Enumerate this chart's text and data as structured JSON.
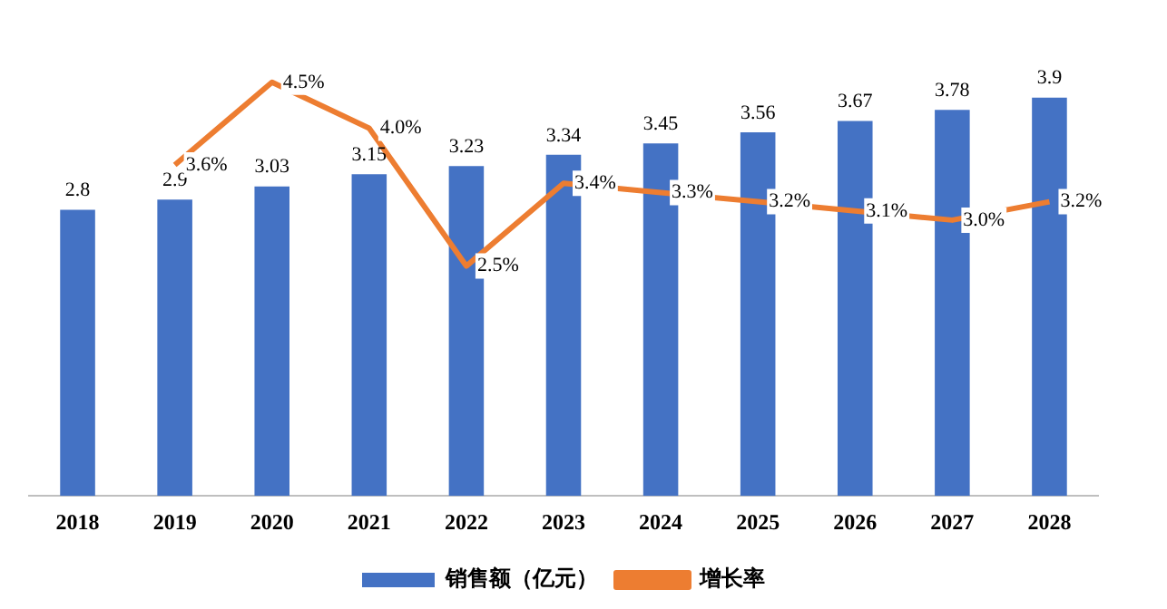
{
  "chart_data": {
    "type": "bar",
    "categories": [
      "2018",
      "2019",
      "2020",
      "2021",
      "2022",
      "2023",
      "2024",
      "2025",
      "2026",
      "2027",
      "2028"
    ],
    "series": [
      {
        "name": "销售额（亿元）",
        "color": "#4472c4",
        "values": [
          2.8,
          2.9,
          3.03,
          3.15,
          3.23,
          3.34,
          3.45,
          3.56,
          3.67,
          3.78,
          3.9
        ],
        "value_labels": [
          "2.8",
          "2.9",
          "3.03",
          "3.15",
          "3.23",
          "3.34",
          "3.45",
          "3.56",
          "3.67",
          "3.78",
          "3.9"
        ]
      },
      {
        "name": "增长率",
        "type": "line",
        "axis": "y2",
        "color": "#ed7d31",
        "values": [
          null,
          3.6,
          4.5,
          4.0,
          2.5,
          3.4,
          3.3,
          3.2,
          3.1,
          3.0,
          3.2
        ],
        "value_labels": [
          null,
          "3.6%",
          "4.5%",
          "4.0%",
          "2.5%",
          "3.4%",
          "3.3%",
          "3.2%",
          "3.1%",
          "3.0%",
          "3.2%"
        ]
      }
    ],
    "tick_labels": "x",
    "grid": false,
    "legend": "bottom",
    "marker": "none",
    "line_style": "solid"
  }
}
